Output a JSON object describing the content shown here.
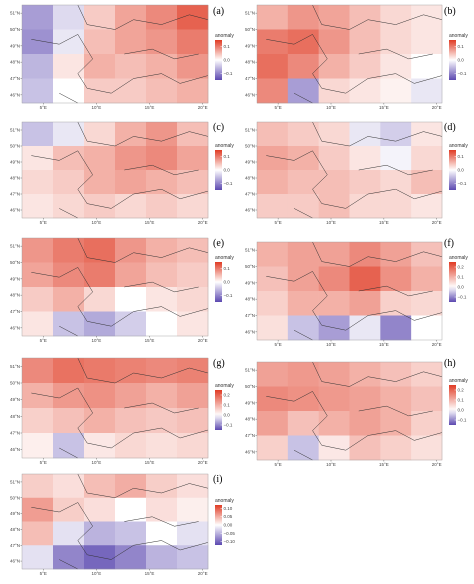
{
  "axes": {
    "xlim": [
      3,
      20.5
    ],
    "ylim": [
      45.5,
      51.5
    ],
    "xticks": [
      {
        "value": 5,
        "label": "5°E"
      },
      {
        "value": 10,
        "label": "10°E"
      },
      {
        "value": 15,
        "label": "15°E"
      },
      {
        "value": 20,
        "label": "20°E"
      }
    ],
    "yticks": [
      {
        "value": 51,
        "label": "51°N"
      },
      {
        "value": 50,
        "label": "50°N"
      },
      {
        "value": 49,
        "label": "49°N"
      },
      {
        "value": 48,
        "label": "48°N"
      },
      {
        "value": 47,
        "label": "47°N"
      },
      {
        "value": 46,
        "label": "46°N"
      }
    ]
  },
  "legend_title": "anomaly",
  "colors": {
    "low": "#5b48b0",
    "mid": "#ffffff",
    "high": "#e03b24"
  },
  "panels": [
    {
      "label": "(a)",
      "lim": [
        -0.15,
        0.15
      ],
      "ticks": [
        0.1,
        {
          "value": 0,
          "label": "0.0"
        },
        {
          "value": -0.1,
          "label": "−0.1"
        }
      ],
      "grid": [
        [
          -0.08,
          -0.03,
          0.04,
          0.07,
          0.09,
          0.12
        ],
        [
          -0.09,
          -0.02,
          0.05,
          0.07,
          0.08,
          0.1
        ],
        [
          -0.06,
          0.02,
          0.06,
          0.05,
          0.06,
          0.08
        ],
        [
          -0.05,
          0,
          0.04,
          0.04,
          0.05,
          0.06
        ]
      ]
    },
    {
      "label": "(b)",
      "lim": [
        -0.15,
        0.15
      ],
      "ticks": [
        0.1,
        {
          "value": 0,
          "label": "0.0"
        },
        {
          "value": -0.1,
          "label": "−0.1"
        }
      ],
      "grid": [
        [
          0.06,
          0.08,
          0.07,
          0.05,
          0.03,
          0.02
        ],
        [
          0.1,
          0.11,
          0.08,
          0.05,
          0.03,
          0.02
        ],
        [
          0.11,
          0.09,
          0.06,
          0.04,
          0.02,
          0
        ],
        [
          0.09,
          -0.08,
          0.03,
          0.02,
          0.01,
          -0.02
        ]
      ]
    },
    {
      "label": "(c)",
      "lim": [
        -0.15,
        0.15
      ],
      "ticks": [
        0.1,
        {
          "value": 0,
          "label": "0.0"
        },
        {
          "value": -0.1,
          "label": "−0.1"
        }
      ],
      "grid": [
        [
          -0.05,
          -0.02,
          0.03,
          0.06,
          0.08,
          0.05
        ],
        [
          0.02,
          0.05,
          0.06,
          0.08,
          0.09,
          0.07
        ],
        [
          0.03,
          0.04,
          0.06,
          0.07,
          0.06,
          0.05
        ],
        [
          0.02,
          0.03,
          0.04,
          0.03,
          0.04,
          0.03
        ]
      ]
    },
    {
      "label": "(d)",
      "lim": [
        -0.15,
        0.15
      ],
      "ticks": [
        0.1,
        {
          "value": 0,
          "label": "0.0"
        },
        {
          "value": -0.1,
          "label": "−0.1"
        }
      ],
      "grid": [
        [
          0.05,
          0.04,
          0.03,
          -0.02,
          -0.04,
          0.02
        ],
        [
          0.07,
          0.06,
          0.04,
          0.02,
          -0.01,
          0.03
        ],
        [
          0.06,
          0.05,
          0.05,
          0.04,
          0.03,
          0.05
        ],
        [
          0.04,
          0.04,
          0.05,
          0.03,
          0.03,
          0.02
        ]
      ]
    },
    {
      "label": "(e)",
      "lim": [
        -0.15,
        0.15
      ],
      "ticks": [
        0.1,
        {
          "value": 0,
          "label": "0.0"
        },
        {
          "value": -0.1,
          "label": "−0.1"
        }
      ],
      "grid": [
        [
          0.08,
          0.1,
          0.11,
          0.08,
          0.06,
          0.05
        ],
        [
          0.07,
          0.09,
          0.1,
          0.07,
          0.05,
          0.04
        ],
        [
          0.04,
          0.06,
          0.03,
          0,
          0.02,
          0.03
        ],
        [
          0.02,
          -0.05,
          -0.07,
          -0.04,
          0,
          0.02
        ]
      ]
    },
    {
      "label": "(f)",
      "lim": [
        -0.15,
        0.25
      ],
      "ticks": [
        0.2,
        0.1,
        {
          "value": 0,
          "label": "0.0"
        },
        {
          "value": -0.1,
          "label": "−0.1"
        }
      ],
      "grid": [
        [
          0.1,
          0.12,
          0.12,
          0.15,
          0.12,
          0.08
        ],
        [
          0.08,
          0.12,
          0.15,
          0.2,
          0.14,
          0.1
        ],
        [
          0.06,
          0.1,
          0.1,
          0.12,
          0.06,
          0.05
        ],
        [
          0.04,
          -0.05,
          -0.08,
          -0.02,
          -0.1,
          0
        ]
      ]
    },
    {
      "label": "(g)",
      "lim": [
        -0.15,
        0.25
      ],
      "ticks": [
        0.2,
        0.1,
        {
          "value": 0,
          "label": "0.0"
        },
        {
          "value": -0.1,
          "label": "−0.1"
        }
      ],
      "grid": [
        [
          0.15,
          0.18,
          0.17,
          0.16,
          0.15,
          0.16
        ],
        [
          0.1,
          0.13,
          0.14,
          0.12,
          0.1,
          0.12
        ],
        [
          0.06,
          0.08,
          0.1,
          0.08,
          0.07,
          0.08
        ],
        [
          0.02,
          -0.05,
          0.03,
          0.05,
          0.04,
          0.05
        ]
      ]
    },
    {
      "label": "(h)",
      "lim": [
        -0.15,
        0.25
      ],
      "ticks": [
        0.2,
        0.1,
        {
          "value": 0,
          "label": "0.0"
        },
        {
          "value": -0.1,
          "label": "−0.1"
        }
      ],
      "grid": [
        [
          0.12,
          0.13,
          0.12,
          0.1,
          0.08,
          0.06
        ],
        [
          0.15,
          0.14,
          0.13,
          0.12,
          0.1,
          0.08
        ],
        [
          0.12,
          0.08,
          0.1,
          0.12,
          0.1,
          0.06
        ],
        [
          0.06,
          -0.05,
          0.03,
          0.08,
          0.06,
          0.04
        ]
      ]
    },
    {
      "label": "(i)",
      "lim": [
        -0.12,
        0.12
      ],
      "ticks": [
        {
          "value": 0.1,
          "label": "0.10"
        },
        0.05,
        {
          "value": 0,
          "label": "0.00"
        },
        {
          "value": -0.05,
          "label": "−0.05"
        },
        {
          "value": -0.1,
          "label": "−0.10"
        }
      ],
      "grid": [
        [
          0.03,
          0.02,
          0.04,
          0.05,
          0.03,
          0.02
        ],
        [
          0.06,
          0.03,
          0.02,
          0,
          0.02,
          0.01
        ],
        [
          0.04,
          -0.02,
          -0.05,
          -0.04,
          0,
          -0.02
        ],
        [
          -0.02,
          -0.08,
          -0.1,
          -0.08,
          -0.05,
          -0.04
        ]
      ]
    }
  ]
}
